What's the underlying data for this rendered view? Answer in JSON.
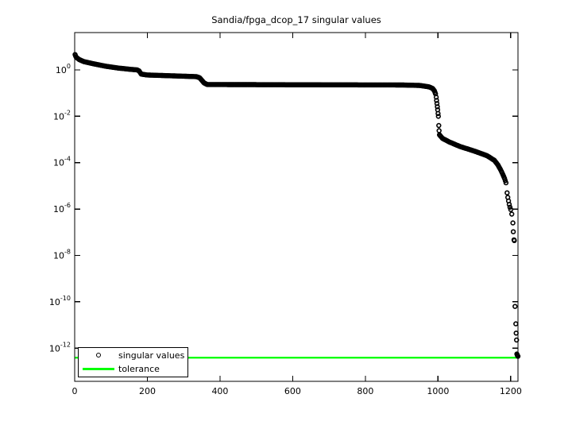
{
  "figure": {
    "title": "Sandia/fpga_dcop_17 singular values",
    "background": "#FFFFFF"
  },
  "legend": {
    "items": [
      {
        "label": "singular values",
        "marker": "open-circle",
        "color": "#000000"
      },
      {
        "label": "tolerance",
        "marker": "line",
        "color": "#00FF00"
      }
    ]
  },
  "chart_data": {
    "type": "scatter",
    "title": "Sandia/fpga_dcop_17 singular values",
    "xlabel": "",
    "ylabel": "",
    "grid": false,
    "n": 1220,
    "xlim": [
      0,
      1220
    ],
    "ylim_log10": [
      -13.43,
      1.61
    ],
    "x_ticks": [
      0,
      200,
      400,
      600,
      800,
      1000,
      1200
    ],
    "y_tick_base": "10",
    "y_tick_exponents": [
      0,
      -2,
      -4,
      -6,
      -8,
      -10,
      -12
    ],
    "marker": "o",
    "marker_color": "#000000",
    "tolerance": {
      "value_log10": -12.41,
      "approx_value": "3.9e-13",
      "color": "#00FF00"
    },
    "band_runs": [
      [
        [
          1,
          0.66
        ],
        [
          4,
          0.55
        ],
        [
          12,
          0.45
        ],
        [
          25,
          0.36
        ],
        [
          50,
          0.27
        ],
        [
          85,
          0.16
        ],
        [
          120,
          0.08
        ],
        [
          150,
          0.03
        ],
        [
          172,
          0.0
        ],
        [
          177,
          -0.04
        ],
        [
          183,
          -0.18
        ],
        [
          200,
          -0.22
        ],
        [
          240,
          -0.24
        ],
        [
          335,
          -0.29
        ],
        [
          344,
          -0.34
        ],
        [
          350,
          -0.45
        ],
        [
          356,
          -0.56
        ],
        [
          365,
          -0.63
        ],
        [
          600,
          -0.64
        ],
        [
          900,
          -0.65
        ],
        [
          950,
          -0.67
        ],
        [
          975,
          -0.73
        ],
        [
          985,
          -0.8
        ],
        [
          990,
          -0.9
        ],
        [
          993,
          -1.03
        ],
        [
          995,
          -1.18
        ],
        [
          997,
          -1.45
        ],
        [
          999,
          -1.72
        ],
        [
          1000,
          -1.88
        ],
        [
          1001,
          -2.0
        ]
      ],
      [
        [
          1004,
          -2.8
        ],
        [
          1012,
          -2.95
        ],
        [
          1030,
          -3.1
        ],
        [
          1060,
          -3.3
        ],
        [
          1100,
          -3.5
        ],
        [
          1135,
          -3.7
        ],
        [
          1155,
          -3.9
        ],
        [
          1165,
          -4.1
        ],
        [
          1172,
          -4.3
        ],
        [
          1178,
          -4.5
        ],
        [
          1183,
          -4.68
        ],
        [
          1187,
          -4.87
        ]
      ]
    ],
    "isolated_points": [
      [
        1002,
        -2.4
      ],
      [
        1003,
        -2.62
      ],
      [
        1190,
        -5.3
      ],
      [
        1192,
        -5.5
      ],
      [
        1194,
        -5.65
      ],
      [
        1196,
        -5.8
      ],
      [
        1198,
        -5.92
      ],
      [
        1200,
        -6.02
      ],
      [
        1203,
        -6.22
      ],
      [
        1206,
        -6.6
      ],
      [
        1207,
        -6.98
      ],
      [
        1209,
        -7.33
      ],
      [
        1210,
        -7.36
      ],
      [
        1212,
        -10.2
      ],
      [
        1214,
        -10.95
      ],
      [
        1215,
        -11.35
      ],
      [
        1216,
        -11.65
      ],
      [
        1217,
        -12.25
      ],
      [
        1218,
        -12.3
      ],
      [
        1219,
        -12.33
      ],
      [
        1220,
        -12.35
      ]
    ]
  }
}
